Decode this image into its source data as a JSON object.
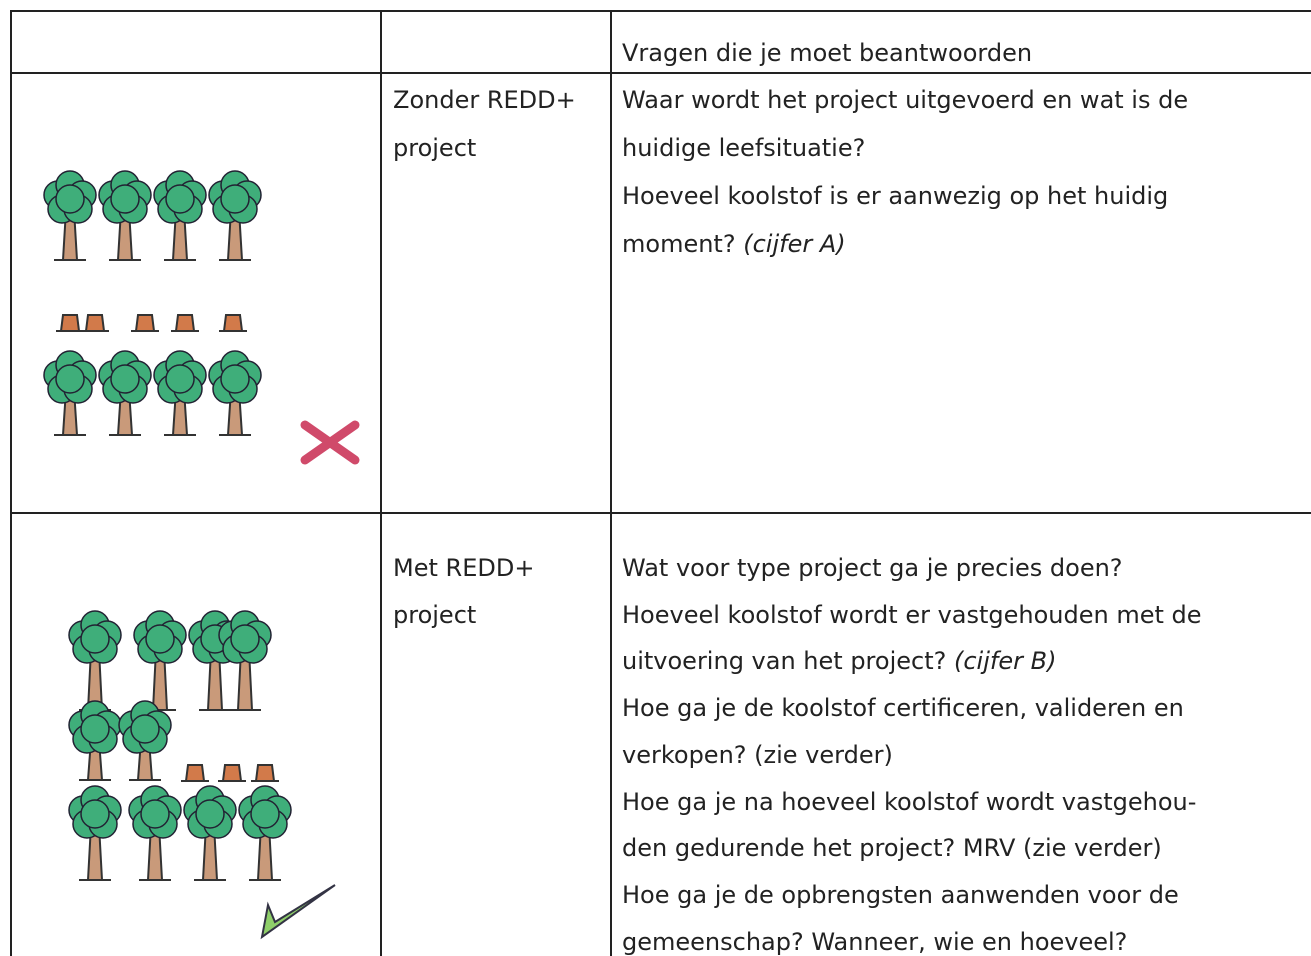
{
  "table": {
    "header": {
      "title": "Vragen die je moet beantwoorden"
    },
    "rows": [
      {
        "label": [
          "Zonder REDD+",
          "project"
        ],
        "lines": [
          {
            "text": "Waar wordt het project uitgevoerd en wat is de"
          },
          {
            "text": "huidige leefsituatie?"
          },
          {
            "text": "Hoeveel koolstof is er aanwezig op het huidig"
          },
          {
            "text": "moment?",
            "italic": "(cijfer A)"
          }
        ]
      },
      {
        "label": [
          "Met REDD+",
          "project"
        ],
        "lines": [
          {
            "text": "Wat voor type project ga je precies doen?"
          },
          {
            "text": "Hoeveel koolstof wordt er vastgehouden met de"
          },
          {
            "text": "uitvoering van het project?",
            "italic": "(cijfer B)"
          },
          {
            "text": "Hoe ga je de koolstof certificeren, valideren en"
          },
          {
            "text": "verkopen? (zie verder)"
          },
          {
            "text": "Hoe ga je na hoeveel koolstof wordt vastgehou-"
          },
          {
            "text": "den gedurende het project? MRV (zie verder)"
          },
          {
            "text": "Hoe ga je de opbrengsten aanwenden voor de"
          },
          {
            "text": "gemeenschap? Wanneer, wie en hoeveel?"
          }
        ]
      }
    ]
  }
}
